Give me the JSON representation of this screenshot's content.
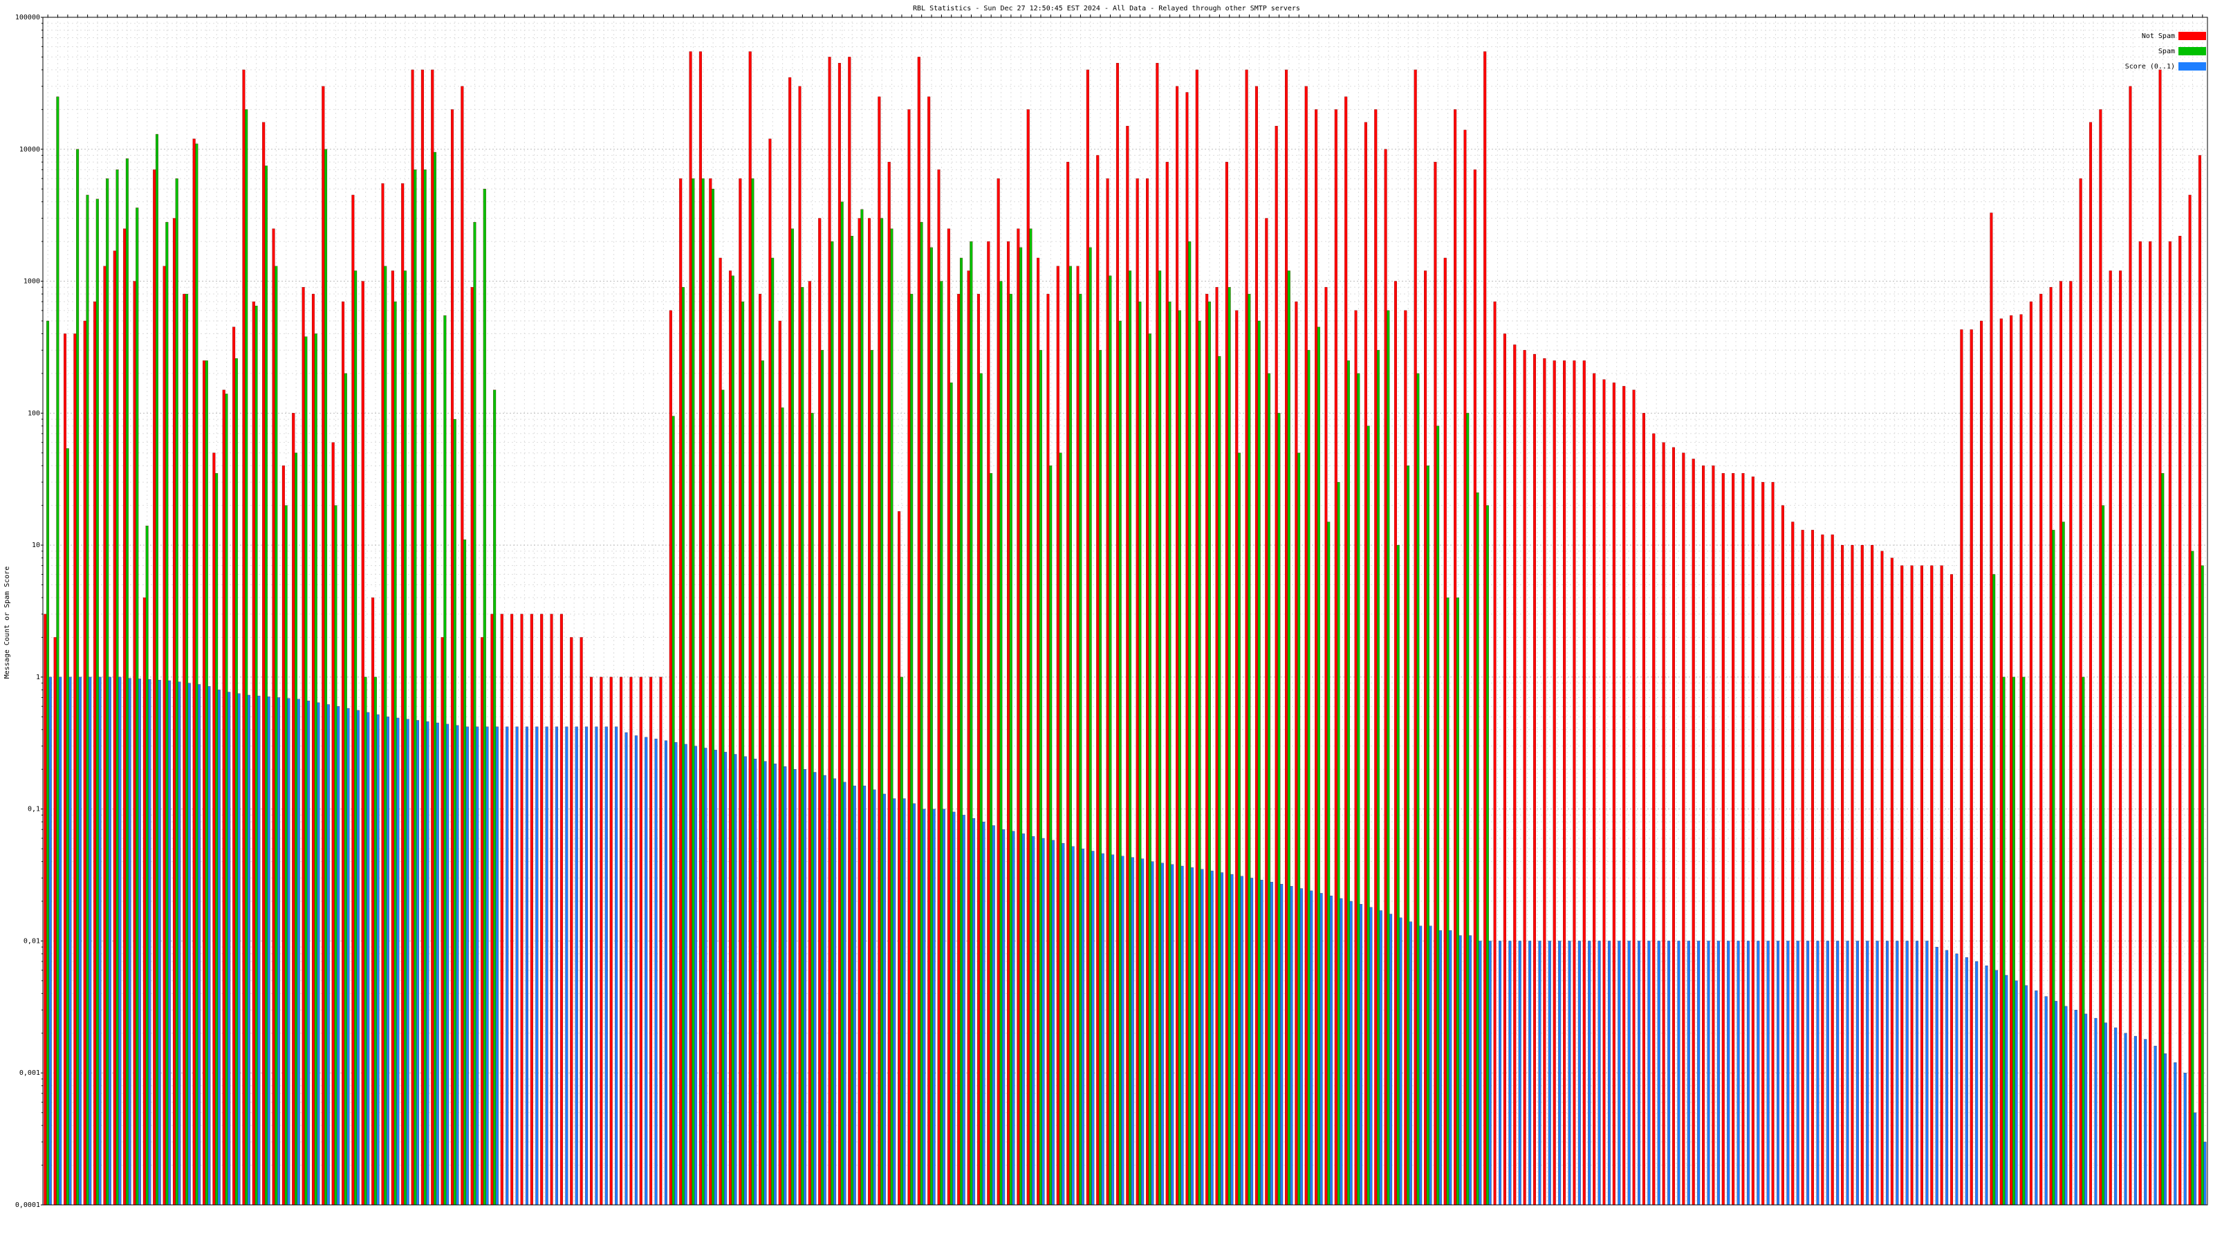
{
  "chart_data": {
    "type": "bar",
    "title": "RBL Statistics - Sun Dec 27 12:50:45 EST 2024 - All Data - Relayed through other SMTP servers",
    "ylabel": "Message Count or Spam Score",
    "log_scale": true,
    "grid": true,
    "legend": "upper right",
    "ylim": [
      0.0001,
      100000
    ],
    "yticks": [
      {
        "value": 0.0001,
        "label": "0,0001"
      },
      {
        "value": 0.001,
        "label": "0,001"
      },
      {
        "value": 0.01,
        "label": "0,01"
      },
      {
        "value": 0.1,
        "label": "0,1"
      },
      1,
      10,
      100,
      1000,
      10000,
      100000
    ],
    "categories": [
      null,
      null,
      null,
      null,
      null,
      null,
      null,
      null,
      null,
      null,
      null,
      null,
      null,
      null,
      null,
      null,
      null,
      null,
      null,
      null,
      null,
      null,
      null,
      null,
      null,
      null,
      null,
      null,
      null,
      null,
      null,
      null,
      null,
      null,
      null,
      null,
      null,
      null,
      null,
      null,
      null,
      null,
      null,
      null,
      null,
      null,
      null,
      null,
      null,
      null,
      null,
      null,
      null,
      null,
      null,
      null,
      null,
      null,
      null,
      null,
      null,
      null,
      null,
      null,
      null,
      null,
      null,
      null,
      null,
      null,
      null,
      null,
      null,
      null,
      null,
      null,
      null,
      null,
      null,
      null,
      null,
      null,
      null,
      null,
      null,
      null,
      null,
      null,
      null,
      null,
      null,
      null,
      null,
      null,
      null,
      null,
      null,
      null,
      null,
      null,
      null,
      null,
      null,
      null,
      null,
      null,
      null,
      null,
      null,
      null,
      null,
      null,
      null,
      null,
      null,
      null,
      null,
      null,
      null,
      null,
      null,
      null,
      null,
      null,
      null,
      null,
      null,
      null,
      null,
      null,
      null,
      null,
      null,
      null,
      null,
      null,
      null,
      null,
      null,
      null,
      null,
      null,
      null,
      null,
      null,
      null,
      null,
      null,
      null,
      null,
      null,
      null,
      null,
      null,
      null,
      null,
      null,
      null,
      null,
      null,
      null,
      null,
      null,
      null,
      null,
      null,
      null,
      null,
      null,
      null,
      null,
      null,
      null,
      null,
      null,
      null,
      null,
      null,
      null,
      null,
      null,
      null,
      null,
      null,
      null,
      null,
      null,
      null,
      null,
      null,
      null,
      null,
      null,
      null,
      null,
      null,
      null,
      null,
      null,
      null,
      null,
      null,
      null,
      null,
      null,
      null,
      null,
      null,
      null,
      null,
      null,
      null,
      null,
      null,
      null,
      null,
      null,
      null
    ],
    "series": [
      {
        "name": "Not Spam",
        "color": "#ff0000",
        "values": [
          3,
          2,
          400,
          400,
          500,
          700,
          1300,
          1700,
          2500,
          1000,
          4,
          7000,
          1300,
          3000,
          800,
          12000,
          250,
          50,
          150,
          450,
          40000,
          700,
          16000,
          2500,
          40,
          100,
          900,
          800,
          30000,
          60,
          700,
          4500,
          1000,
          4,
          5500,
          1200,
          5500,
          40000,
          40000,
          40000,
          2,
          20000,
          30000,
          900,
          2,
          3,
          3,
          3,
          3,
          3,
          3,
          3,
          3,
          2,
          2,
          1,
          1,
          1,
          1,
          1,
          1,
          1,
          1,
          600,
          6000,
          55000,
          55000,
          6000,
          1500,
          1200,
          6000,
          55000,
          800,
          12000,
          500,
          35000,
          30000,
          1000,
          3000,
          50000,
          45000,
          50000,
          3000,
          3000,
          25000,
          8000,
          18,
          20000,
          50000,
          25000,
          7000,
          2500,
          800,
          1200,
          800,
          2000,
          6000,
          2000,
          2500,
          20000,
          1500,
          800,
          1300,
          8000,
          1300,
          40000,
          9000,
          6000,
          45000,
          15000,
          6000,
          6000,
          45000,
          8000,
          30000,
          27000,
          40000,
          800,
          900,
          8000,
          600,
          40000,
          30000,
          3000,
          15000,
          40000,
          700,
          30000,
          20000,
          900,
          20000,
          25000,
          600,
          16000,
          20000,
          10000,
          1000,
          600,
          40000,
          1200,
          8000,
          1500,
          20000,
          14000,
          7000,
          55000,
          700,
          400,
          330,
          300,
          280,
          260,
          250,
          250,
          250,
          250,
          200,
          180,
          170,
          160,
          150,
          100,
          70,
          60,
          55,
          50,
          45,
          40,
          40,
          35,
          35,
          35,
          33,
          30,
          30,
          20,
          15,
          13,
          13,
          12,
          12,
          10,
          10,
          10,
          10,
          9,
          8,
          7,
          7,
          7,
          7,
          7,
          6,
          430,
          430,
          500,
          3300,
          520,
          550,
          560,
          700,
          800,
          900,
          1000,
          1000,
          6000,
          16000,
          20000,
          1200,
          1200,
          30000,
          2000,
          2000,
          40000,
          2000,
          2200,
          4500,
          9000
        ]
      },
      {
        "name": "Spam",
        "color": "#00c000",
        "values": [
          500,
          25000,
          54,
          10000,
          4500,
          4200,
          6000,
          7000,
          8500,
          3600,
          14,
          13000,
          2800,
          6000,
          800,
          11000,
          250,
          35,
          140,
          260,
          20000,
          650,
          7500,
          1300,
          20,
          50,
          380,
          400,
          10000,
          20,
          200,
          1200,
          1,
          1,
          1300,
          700,
          1200,
          7000,
          7000,
          9500,
          550,
          90,
          11,
          2800,
          5000,
          150,
          null,
          null,
          null,
          null,
          null,
          null,
          null,
          null,
          null,
          null,
          null,
          null,
          null,
          null,
          null,
          null,
          null,
          95,
          900,
          6000,
          6000,
          5000,
          150,
          1100,
          700,
          6000,
          250,
          1500,
          110,
          2500,
          900,
          100,
          300,
          2000,
          4000,
          2200,
          3500,
          300,
          3000,
          2500,
          1,
          800,
          2800,
          1800,
          1000,
          170,
          1500,
          2000,
          200,
          35,
          1000,
          800,
          1800,
          2500,
          300,
          40,
          50,
          1300,
          800,
          1800,
          300,
          1100,
          500,
          1200,
          700,
          400,
          1200,
          700,
          600,
          2000,
          500,
          700,
          270,
          900,
          50,
          800,
          500,
          200,
          100,
          1200,
          50,
          300,
          450,
          15,
          30,
          250,
          200,
          80,
          300,
          600,
          10,
          40,
          200,
          40,
          80,
          4,
          4,
          100,
          25,
          20,
          null,
          null,
          null,
          null,
          null,
          null,
          null,
          null,
          null,
          null,
          null,
          null,
          null,
          null,
          null,
          null,
          null,
          null,
          null,
          null,
          null,
          null,
          null,
          null,
          null,
          null,
          null,
          null,
          null,
          null,
          null,
          null,
          null,
          null,
          null,
          null,
          null,
          null,
          null,
          null,
          null,
          null,
          null,
          null,
          null,
          null,
          null,
          null,
          null,
          null,
          6,
          1,
          1,
          1,
          null,
          null,
          13,
          15,
          null,
          1,
          null,
          20,
          null,
          null,
          null,
          null,
          null,
          35,
          null,
          null,
          9,
          7
        ]
      },
      {
        "name": "Score (0..1)",
        "color": "#1e7fff",
        "values": [
          1,
          1,
          1,
          1,
          1,
          1,
          1,
          1,
          0.98,
          0.97,
          0.96,
          0.95,
          0.94,
          0.92,
          0.9,
          0.88,
          0.85,
          0.8,
          0.77,
          0.75,
          0.73,
          0.72,
          0.71,
          0.7,
          0.69,
          0.68,
          0.66,
          0.64,
          0.62,
          0.6,
          0.58,
          0.56,
          0.54,
          0.52,
          0.5,
          0.49,
          0.48,
          0.47,
          0.46,
          0.45,
          0.44,
          0.43,
          0.42,
          0.42,
          0.42,
          0.42,
          0.42,
          0.42,
          0.42,
          0.42,
          0.42,
          0.42,
          0.42,
          0.42,
          0.42,
          0.42,
          0.42,
          0.42,
          0.38,
          0.36,
          0.35,
          0.34,
          0.33,
          0.32,
          0.31,
          0.3,
          0.29,
          0.28,
          0.27,
          0.26,
          0.25,
          0.24,
          0.23,
          0.22,
          0.21,
          0.2,
          0.2,
          0.19,
          0.18,
          0.17,
          0.16,
          0.15,
          0.15,
          0.14,
          0.13,
          0.12,
          0.12,
          0.11,
          0.1,
          0.1,
          0.1,
          0.095,
          0.09,
          0.085,
          0.08,
          0.075,
          0.07,
          0.068,
          0.065,
          0.062,
          0.06,
          0.058,
          0.055,
          0.052,
          0.05,
          0.048,
          0.046,
          0.045,
          0.044,
          0.043,
          0.042,
          0.04,
          0.039,
          0.038,
          0.037,
          0.036,
          0.035,
          0.034,
          0.033,
          0.032,
          0.031,
          0.03,
          0.029,
          0.028,
          0.027,
          0.026,
          0.025,
          0.024,
          0.023,
          0.022,
          0.021,
          0.02,
          0.019,
          0.018,
          0.017,
          0.016,
          0.015,
          0.014,
          0.013,
          0.013,
          0.012,
          0.012,
          0.011,
          0.011,
          0.01,
          0.01,
          0.01,
          0.01,
          0.01,
          0.01,
          0.01,
          0.01,
          0.01,
          0.01,
          0.01,
          0.01,
          0.01,
          0.01,
          0.01,
          0.01,
          0.01,
          0.01,
          0.01,
          0.01,
          0.01,
          0.01,
          0.01,
          0.01,
          0.01,
          0.01,
          0.01,
          0.01,
          0.01,
          0.01,
          0.01,
          0.01,
          0.01,
          0.01,
          0.01,
          0.01,
          0.01,
          0.01,
          0.01,
          0.01,
          0.01,
          0.01,
          0.01,
          0.01,
          0.01,
          0.01,
          0.009,
          0.0085,
          0.008,
          0.0075,
          0.007,
          0.0065,
          0.006,
          0.0055,
          0.005,
          0.0046,
          0.0042,
          0.0038,
          0.0035,
          0.0032,
          0.003,
          0.0028,
          0.0026,
          0.0024,
          0.0022,
          0.002,
          0.0019,
          0.0018,
          0.0016,
          0.0014,
          0.0012,
          0.001,
          0.0005,
          0.0003
        ]
      }
    ]
  }
}
